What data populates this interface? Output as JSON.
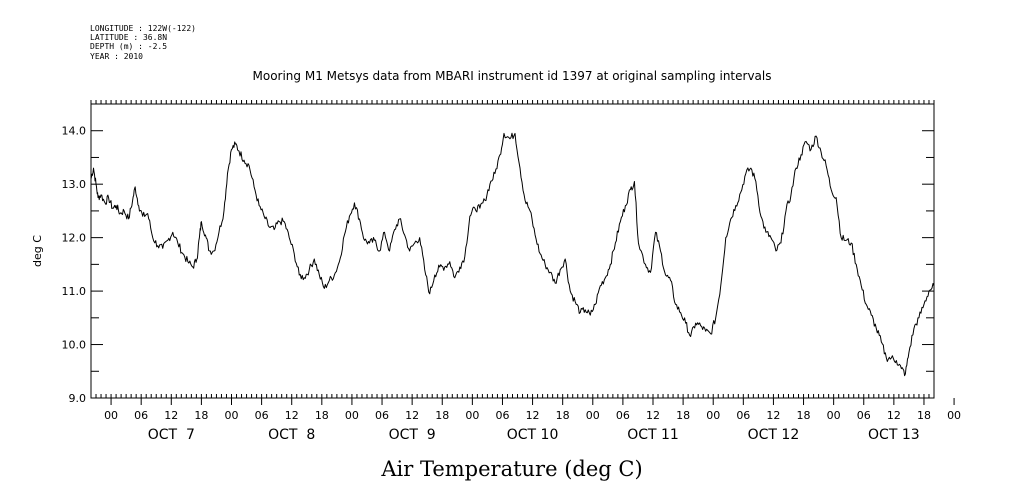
{
  "metadata": {
    "longitude": "LONGITUDE : 122W(-122)",
    "latitude": "LATITUDE : 36.8N",
    "depth": "DEPTH (m) : -2.5",
    "year": "YEAR : 2010"
  },
  "chart_data": {
    "type": "line",
    "title": "Mooring M1 Metsys data from MBARI instrument id 1397 at original sampling intervals",
    "xlabel": "Air Temperature (deg C)",
    "ylabel": "deg C",
    "ylim": [
      9.0,
      14.5
    ],
    "yticks": [
      9.0,
      10.0,
      11.0,
      12.0,
      13.0,
      14.0
    ],
    "xlim_hours": [
      -4,
      164
    ],
    "hour_tick_labels": [
      "00",
      "06",
      "12",
      "18",
      "00",
      "06",
      "12",
      "18",
      "00",
      "06",
      "12",
      "18",
      "00",
      "06",
      "12",
      "18",
      "00",
      "06",
      "12",
      "18",
      "00",
      "06",
      "12",
      "18",
      "00",
      "06",
      "12",
      "18",
      "00"
    ],
    "day_labels": [
      "OCT  7",
      "OCT  8",
      "OCT  9",
      "OCT 10",
      "OCT 11",
      "OCT 12",
      "OCT 13"
    ],
    "grid": false,
    "legend": "none",
    "series": [
      {
        "color": "#000000",
        "points": [
          [
            -4,
            13.1
          ],
          [
            -3.5,
            13.3
          ],
          [
            -3,
            13.0
          ],
          [
            -2.6,
            12.75
          ],
          [
            -2,
            12.8
          ],
          [
            -1.2,
            12.65
          ],
          [
            -0.5,
            12.75
          ],
          [
            0.3,
            12.55
          ],
          [
            1,
            12.6
          ],
          [
            1.8,
            12.45
          ],
          [
            2.6,
            12.5
          ],
          [
            3.5,
            12.35
          ],
          [
            4.3,
            12.7
          ],
          [
            4.8,
            12.95
          ],
          [
            5.5,
            12.6
          ],
          [
            6.3,
            12.4
          ],
          [
            7.3,
            12.45
          ],
          [
            8.3,
            12.0
          ],
          [
            9.3,
            11.85
          ],
          [
            10.3,
            11.8
          ],
          [
            11.3,
            11.95
          ],
          [
            12.3,
            12.1
          ],
          [
            13.3,
            11.9
          ],
          [
            14.3,
            11.7
          ],
          [
            15.3,
            11.55
          ],
          [
            16.3,
            11.45
          ],
          [
            17.1,
            11.6
          ],
          [
            17.6,
            12.0
          ],
          [
            18,
            12.3
          ],
          [
            18.8,
            12.05
          ],
          [
            19.6,
            11.75
          ],
          [
            20.5,
            11.75
          ],
          [
            21.5,
            12.1
          ],
          [
            22.5,
            12.5
          ],
          [
            23.2,
            13.2
          ],
          [
            24,
            13.65
          ],
          [
            24.8,
            13.75
          ],
          [
            25.5,
            13.62
          ],
          [
            26.5,
            13.45
          ],
          [
            27.5,
            13.35
          ],
          [
            28.5,
            12.95
          ],
          [
            29.5,
            12.6
          ],
          [
            30.5,
            12.4
          ],
          [
            31.5,
            12.2
          ],
          [
            32.5,
            12.15
          ],
          [
            33.5,
            12.3
          ],
          [
            34.5,
            12.3
          ],
          [
            35.5,
            12.0
          ],
          [
            36.5,
            11.7
          ],
          [
            37.5,
            11.3
          ],
          [
            38.5,
            11.25
          ],
          [
            39.5,
            11.4
          ],
          [
            40.5,
            11.6
          ],
          [
            41.5,
            11.3
          ],
          [
            42.5,
            11.05
          ],
          [
            43.5,
            11.2
          ],
          [
            44.5,
            11.3
          ],
          [
            45.5,
            11.55
          ],
          [
            46.5,
            12.05
          ],
          [
            47.5,
            12.4
          ],
          [
            48.5,
            12.65
          ],
          [
            49.5,
            12.35
          ],
          [
            50.5,
            11.95
          ],
          [
            51.5,
            11.9
          ],
          [
            52.5,
            11.95
          ],
          [
            53.5,
            11.75
          ],
          [
            54.5,
            12.1
          ],
          [
            55.5,
            11.75
          ],
          [
            56.5,
            12.15
          ],
          [
            57.5,
            12.35
          ],
          [
            58.5,
            12.05
          ],
          [
            59.5,
            11.75
          ],
          [
            60.5,
            11.9
          ],
          [
            61.5,
            12.0
          ],
          [
            62.5,
            11.4
          ],
          [
            63.5,
            10.95
          ],
          [
            64.5,
            11.3
          ],
          [
            65.5,
            11.45
          ],
          [
            66.5,
            11.45
          ],
          [
            67.5,
            11.55
          ],
          [
            68.5,
            11.25
          ],
          [
            69.5,
            11.45
          ],
          [
            70.5,
            11.65
          ],
          [
            71.5,
            12.4
          ],
          [
            72.5,
            12.55
          ],
          [
            73.5,
            12.55
          ],
          [
            74.5,
            12.7
          ],
          [
            75.5,
            13.0
          ],
          [
            76.5,
            13.2
          ],
          [
            77.5,
            13.55
          ],
          [
            78.3,
            13.95
          ],
          [
            79.5,
            13.85
          ],
          [
            80.5,
            13.95
          ],
          [
            81.5,
            13.3
          ],
          [
            82.5,
            12.7
          ],
          [
            83.5,
            12.5
          ],
          [
            84.5,
            12.05
          ],
          [
            85.5,
            11.7
          ],
          [
            86.5,
            11.5
          ],
          [
            87.5,
            11.35
          ],
          [
            88.5,
            11.15
          ],
          [
            89.5,
            11.4
          ],
          [
            90.5,
            11.6
          ],
          [
            91.5,
            11.0
          ],
          [
            92.5,
            10.8
          ],
          [
            93.5,
            10.6
          ],
          [
            94.5,
            10.65
          ],
          [
            95.5,
            10.55
          ],
          [
            96.5,
            10.75
          ],
          [
            97.5,
            11.1
          ],
          [
            98.5,
            11.25
          ],
          [
            99.5,
            11.5
          ],
          [
            100.5,
            11.9
          ],
          [
            101.5,
            12.3
          ],
          [
            102.5,
            12.6
          ],
          [
            103.5,
            12.9
          ],
          [
            104.3,
            13.05
          ],
          [
            105.1,
            11.9
          ],
          [
            106.5,
            11.5
          ],
          [
            107.5,
            11.35
          ],
          [
            108.5,
            12.1
          ],
          [
            109.5,
            11.75
          ],
          [
            110.5,
            11.3
          ],
          [
            111.5,
            11.2
          ],
          [
            112.5,
            10.75
          ],
          [
            113.5,
            10.6
          ],
          [
            114.5,
            10.4
          ],
          [
            115.5,
            10.15
          ],
          [
            116.5,
            10.4
          ],
          [
            117.5,
            10.35
          ],
          [
            118.5,
            10.25
          ],
          [
            119.5,
            10.2
          ],
          [
            120.5,
            10.5
          ],
          [
            121.5,
            11.1
          ],
          [
            122.5,
            12.0
          ],
          [
            123.5,
            12.35
          ],
          [
            124.5,
            12.6
          ],
          [
            125.5,
            12.85
          ],
          [
            126.5,
            13.2
          ],
          [
            127.5,
            13.3
          ],
          [
            128.5,
            13.05
          ],
          [
            129.5,
            12.4
          ],
          [
            130.5,
            12.1
          ],
          [
            131.5,
            12.0
          ],
          [
            132.5,
            11.75
          ],
          [
            133.5,
            11.9
          ],
          [
            134.5,
            12.5
          ],
          [
            135.5,
            12.8
          ],
          [
            136.5,
            13.3
          ],
          [
            137.5,
            13.55
          ],
          [
            138.5,
            13.8
          ],
          [
            139.5,
            13.65
          ],
          [
            140.5,
            13.9
          ],
          [
            141.5,
            13.6
          ],
          [
            142.5,
            13.35
          ],
          [
            143.5,
            12.9
          ],
          [
            144.5,
            12.75
          ],
          [
            145.5,
            12.0
          ],
          [
            146.5,
            11.95
          ],
          [
            147.5,
            11.9
          ],
          [
            148.5,
            11.5
          ],
          [
            149.5,
            11.1
          ],
          [
            150.5,
            10.75
          ],
          [
            151.5,
            10.55
          ],
          [
            152.5,
            10.3
          ],
          [
            153.5,
            10.05
          ],
          [
            154.5,
            9.75
          ],
          [
            155.5,
            9.75
          ],
          [
            156.5,
            9.7
          ],
          [
            157.5,
            9.55
          ],
          [
            158.3,
            9.45
          ],
          [
            159,
            9.85
          ],
          [
            160,
            10.3
          ],
          [
            161,
            10.5
          ],
          [
            162,
            10.75
          ],
          [
            163,
            11.0
          ],
          [
            164,
            11.1
          ]
        ]
      }
    ]
  }
}
